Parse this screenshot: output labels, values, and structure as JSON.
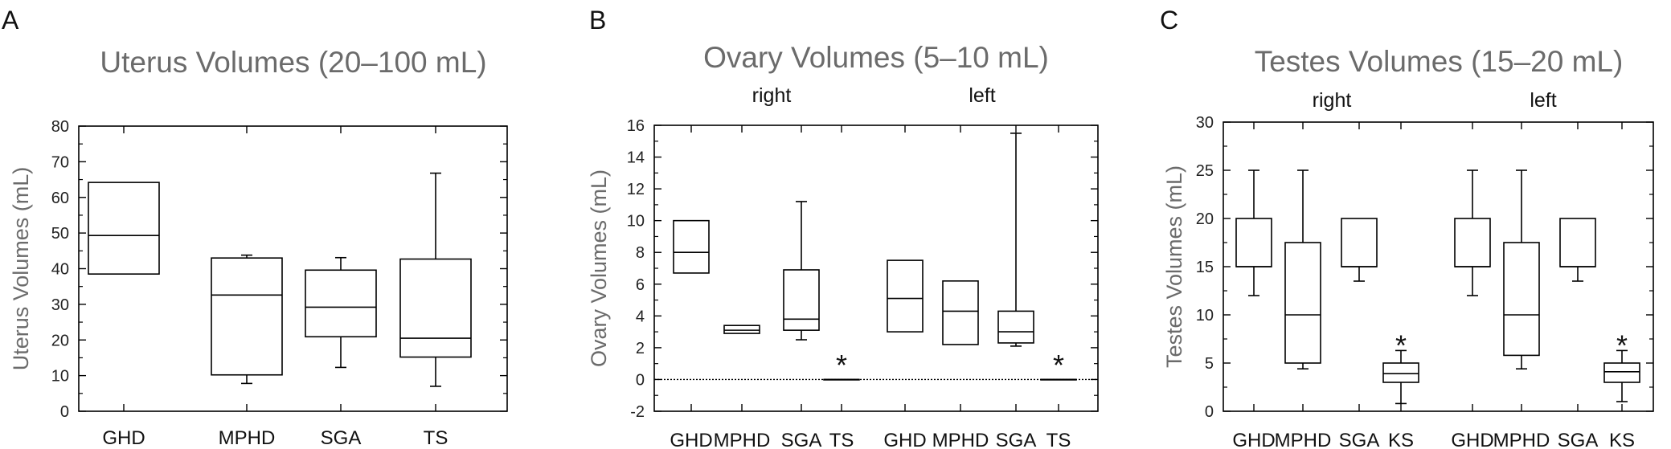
{
  "chart_data": [
    {
      "panel": "A",
      "type": "box",
      "title": "Uterus Volumes  (20–100 mL)",
      "ylabel": "Uterus Volumes (mL)",
      "ylim": [
        0,
        80
      ],
      "yticks": [
        0,
        10,
        20,
        30,
        40,
        50,
        60,
        70,
        80
      ],
      "grid": false,
      "group_labels": [],
      "categories": [
        "GHD",
        "MPHD",
        "SGA",
        "TS"
      ],
      "boxes": [
        {
          "label": "GHD",
          "q1": 38.5,
          "median": 49.3,
          "q3": 64.2
        },
        {
          "label": "MPHD",
          "min": 7.8,
          "q1": 10.2,
          "median": 32.6,
          "q3": 43.0,
          "max": 43.8
        },
        {
          "label": "SGA",
          "min": 12.3,
          "q1": 20.9,
          "median": 29.2,
          "q3": 39.6,
          "max": 43.1
        },
        {
          "label": "TS",
          "min": 7.0,
          "q1": 15.2,
          "median": 20.5,
          "q3": 42.7,
          "max": 66.8
        }
      ],
      "annotations": []
    },
    {
      "panel": "B",
      "type": "box",
      "title": "Ovary Volumes (5–10 mL)",
      "ylabel": "Ovary Volumes (mL)",
      "ylim": [
        -2,
        16
      ],
      "yticks": [
        -2,
        0,
        2,
        4,
        6,
        8,
        10,
        12,
        14,
        16
      ],
      "reference_line": 0,
      "grid": false,
      "group_labels": [
        "right",
        "left"
      ],
      "categories": [
        "GHD",
        "MPHD",
        "SGA",
        "TS",
        "GHD",
        "MPHD",
        "SGA",
        "TS"
      ],
      "boxes": [
        {
          "group": "right",
          "label": "GHD",
          "q1": 6.7,
          "median": 8.0,
          "q3": 10.0
        },
        {
          "group": "right",
          "label": "MPHD",
          "q1": 2.9,
          "median": 3.1,
          "q3": 3.4
        },
        {
          "group": "right",
          "label": "SGA",
          "min": 2.5,
          "q1": 3.1,
          "median": 3.8,
          "q3": 6.9,
          "max": 11.2
        },
        {
          "group": "right",
          "label": "TS",
          "q1": 0,
          "median": 0,
          "q3": 0
        },
        {
          "group": "left",
          "label": "GHD",
          "q1": 3.0,
          "median": 5.1,
          "q3": 7.5
        },
        {
          "group": "left",
          "label": "MPHD",
          "q1": 2.2,
          "median": 4.3,
          "q3": 6.2
        },
        {
          "group": "left",
          "label": "SGA",
          "min": 2.1,
          "q1": 2.3,
          "median": 3.0,
          "q3": 4.3,
          "max": 15.5
        },
        {
          "group": "left",
          "label": "TS",
          "q1": 0,
          "median": 0,
          "q3": 0
        }
      ],
      "annotations": [
        {
          "text": "*",
          "category_index": 3,
          "y": 1.5
        },
        {
          "text": "*",
          "category_index": 7,
          "y": 1.5
        }
      ]
    },
    {
      "panel": "C",
      "type": "box",
      "title": "Testes Volumes (15–20 mL)",
      "ylabel": "Testes Volumes (mL)",
      "ylim": [
        0,
        30
      ],
      "yticks": [
        0,
        5,
        10,
        15,
        20,
        25,
        30
      ],
      "grid": false,
      "group_labels": [
        "right",
        "left"
      ],
      "categories": [
        "GHD",
        "MPHD",
        "SGA",
        "KS",
        "GHD",
        "MPHD",
        "SGA",
        "KS"
      ],
      "boxes": [
        {
          "group": "right",
          "label": "GHD",
          "min": 12.0,
          "q1": 15.0,
          "median": 15.0,
          "q3": 20.0,
          "max": 25.0
        },
        {
          "group": "right",
          "label": "MPHD",
          "min": 4.4,
          "q1": 5.0,
          "median": 10.0,
          "q3": 17.5,
          "max": 25.0
        },
        {
          "group": "right",
          "label": "SGA",
          "min": 13.5,
          "q1": 15.0,
          "median": 15.0,
          "q3": 20.0
        },
        {
          "group": "right",
          "label": "KS",
          "min": 0.8,
          "q1": 3.0,
          "median": 3.9,
          "q3": 5.0,
          "max": 6.3
        },
        {
          "group": "left",
          "label": "GHD",
          "min": 12.0,
          "q1": 15.0,
          "median": 15.0,
          "q3": 20.0,
          "max": 25.0
        },
        {
          "group": "left",
          "label": "MPHD",
          "min": 4.4,
          "q1": 5.8,
          "median": 10.0,
          "q3": 17.5,
          "max": 25.0
        },
        {
          "group": "left",
          "label": "SGA",
          "min": 13.5,
          "q1": 15.0,
          "median": 15.0,
          "q3": 20.0
        },
        {
          "group": "left",
          "label": "KS",
          "min": 1.0,
          "q1": 3.0,
          "median": 4.1,
          "q3": 5.0,
          "max": 6.3
        }
      ],
      "annotations": [
        {
          "text": "*",
          "category_index": 3,
          "y": 7.8
        },
        {
          "text": "*",
          "category_index": 7,
          "y": 7.8
        }
      ]
    }
  ]
}
